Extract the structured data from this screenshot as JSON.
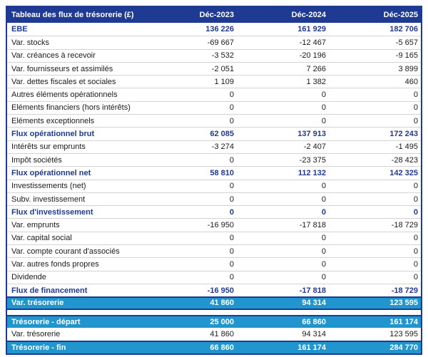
{
  "table": {
    "title": "Tableau des flux de trésorerie (£)",
    "columns": [
      "Déc-2023",
      "Déc-2024",
      "Déc-2025"
    ],
    "main_rows": [
      {
        "label": "EBE",
        "values": [
          "136 226",
          "161 929",
          "182 706"
        ],
        "style": "section"
      },
      {
        "label": "Var. stocks",
        "values": [
          "-69 667",
          "-12 467",
          "-5 657"
        ],
        "style": "normal"
      },
      {
        "label": "Var. créances à recevoir",
        "values": [
          "-3 532",
          "-20 196",
          "-9 165"
        ],
        "style": "normal"
      },
      {
        "label": "Var. fournisseurs et assimilés",
        "values": [
          "-2 051",
          "7 266",
          "3 899"
        ],
        "style": "normal"
      },
      {
        "label": "Var. dettes fiscales et sociales",
        "values": [
          "1 109",
          "1 382",
          "460"
        ],
        "style": "normal"
      },
      {
        "label": "Autres éléments opérationnels",
        "values": [
          "0",
          "0",
          "0"
        ],
        "style": "normal"
      },
      {
        "label": "Eléments financiers (hors intérêts)",
        "values": [
          "0",
          "0",
          "0"
        ],
        "style": "normal"
      },
      {
        "label": "Eléments exceptionnels",
        "values": [
          "0",
          "0",
          "0"
        ],
        "style": "normal"
      },
      {
        "label": "Flux opérationnel brut",
        "values": [
          "62 085",
          "137 913",
          "172 243"
        ],
        "style": "section"
      },
      {
        "label": "Intérêts sur emprunts",
        "values": [
          "-3 274",
          "-2 407",
          "-1 495"
        ],
        "style": "normal"
      },
      {
        "label": "Impôt sociétés",
        "values": [
          "0",
          "-23 375",
          "-28 423"
        ],
        "style": "normal"
      },
      {
        "label": "Flux opérationnel net",
        "values": [
          "58 810",
          "112 132",
          "142 325"
        ],
        "style": "section"
      },
      {
        "label": "Investissements (net)",
        "values": [
          "0",
          "0",
          "0"
        ],
        "style": "normal"
      },
      {
        "label": "Subv. investissement",
        "values": [
          "0",
          "0",
          "0"
        ],
        "style": "normal"
      },
      {
        "label": "Flux d'investissement",
        "values": [
          "0",
          "0",
          "0"
        ],
        "style": "section"
      },
      {
        "label": "Var. emprunts",
        "values": [
          "-16 950",
          "-17 818",
          "-18 729"
        ],
        "style": "normal"
      },
      {
        "label": "Var. capital social",
        "values": [
          "0",
          "0",
          "0"
        ],
        "style": "normal"
      },
      {
        "label": "Var. compte courant d'associés",
        "values": [
          "0",
          "0",
          "0"
        ],
        "style": "normal"
      },
      {
        "label": "Var. autres fonds propres",
        "values": [
          "0",
          "0",
          "0"
        ],
        "style": "normal"
      },
      {
        "label": "Dividende",
        "values": [
          "0",
          "0",
          "0"
        ],
        "style": "normal"
      },
      {
        "label": "Flux de financement",
        "values": [
          "-16 950",
          "-17 818",
          "-18 729"
        ],
        "style": "section"
      },
      {
        "label": "Var. trésorerie",
        "values": [
          "41 860",
          "94 314",
          "123 595"
        ],
        "style": "highlight"
      }
    ],
    "bottom_rows": [
      {
        "label": "Trésorerie - départ",
        "values": [
          "25 000",
          "66 860",
          "161 174"
        ],
        "style": "highlight"
      },
      {
        "label": "Var. trésorerie",
        "values": [
          "41 860",
          "94 314",
          "123 595"
        ],
        "style": "normal"
      },
      {
        "label": "Trésorerie - fin",
        "values": [
          "66 860",
          "161 174",
          "284 770"
        ],
        "style": "highlight"
      }
    ],
    "colors": {
      "header_bg": "#1e3a93",
      "highlight_bg": "#2196ce",
      "separator": "#d4d4d4",
      "body_text": "#1a1a1a"
    }
  }
}
